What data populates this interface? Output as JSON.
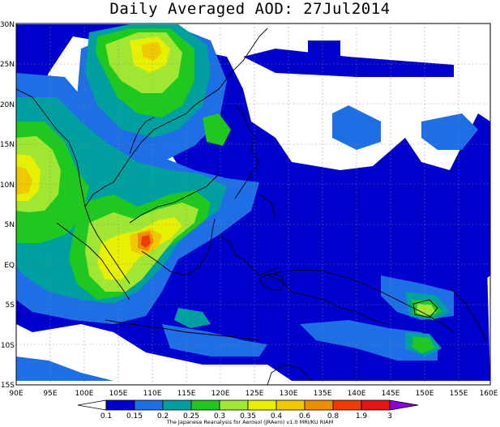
{
  "title": "Daily Averaged AOD: 27Jul2014",
  "credit": "The Japanese Reanalysis for Aerosol (JRAero) v1.0 MRI/KU RIAM",
  "map": {
    "lon_range": [
      90,
      160
    ],
    "lat_range": [
      -15,
      30
    ],
    "x_ticks": [
      "90E",
      "95E",
      "100E",
      "105E",
      "110E",
      "115E",
      "120E",
      "125E",
      "130E",
      "135E",
      "140E",
      "145E",
      "150E",
      "155E",
      "160E"
    ],
    "y_ticks": [
      "30N",
      "25N",
      "20N",
      "15N",
      "10N",
      "5N",
      "EQ",
      "5S",
      "10S",
      "15S"
    ],
    "colorbar_labels": [
      "0.1",
      "0.15",
      "0.2",
      "0.25",
      "0.3",
      "0.35",
      "0.4",
      "0.6",
      "0.8",
      "1.9",
      "3"
    ],
    "colors": {
      "c0": "#0000cd",
      "c1": "#1e6ee6",
      "c2": "#00a0a0",
      "c3": "#1ec81e",
      "c4": "#a0e632",
      "c5": "#e6f000",
      "c6": "#f0c800",
      "c7": "#f08c00",
      "c8": "#f03c00",
      "c9": "#e61414",
      "c10": "#8c00dc"
    }
  }
}
